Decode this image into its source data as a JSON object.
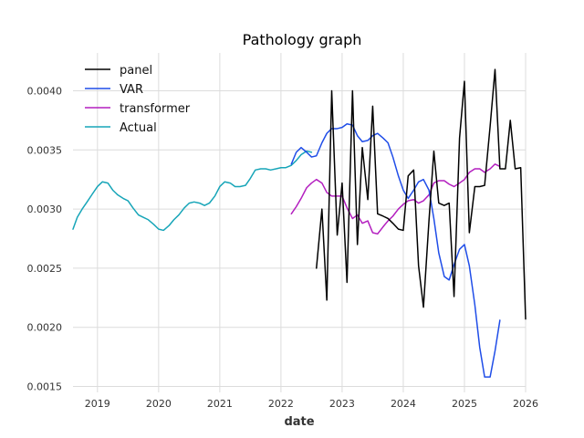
{
  "chart_data": {
    "type": "line",
    "title": "Pathology graph",
    "xlabel": "date",
    "ylabel": "",
    "xlim": [
      2018.6,
      2026.0
    ],
    "ylim": [
      0.00145,
      0.00432
    ],
    "x_ticks": [
      2019,
      2020,
      2021,
      2022,
      2023,
      2024,
      2025,
      2026
    ],
    "x_tick_labels": [
      "2019",
      "2020",
      "2021",
      "2022",
      "2023",
      "2024",
      "2025",
      "2026"
    ],
    "y_ticks": [
      0.0015,
      0.002,
      0.0025,
      0.003,
      0.0035,
      0.004
    ],
    "y_tick_labels": [
      "0.0015",
      "0.0020",
      "0.0025",
      "0.0030",
      "0.0035",
      "0.0040"
    ],
    "grid": true,
    "legend_position": "top-left",
    "series": [
      {
        "name": "panel",
        "color": "#000000",
        "points": [
          [
            2022.58,
            0.0025
          ],
          [
            2022.67,
            0.003
          ],
          [
            2022.75,
            0.00223
          ],
          [
            2022.83,
            0.004
          ],
          [
            2022.92,
            0.00278
          ],
          [
            2023.0,
            0.00322
          ],
          [
            2023.08,
            0.00238
          ],
          [
            2023.17,
            0.004
          ],
          [
            2023.25,
            0.0027
          ],
          [
            2023.33,
            0.00352
          ],
          [
            2023.42,
            0.00308
          ],
          [
            2023.5,
            0.00387
          ],
          [
            2023.58,
            0.00296
          ],
          [
            2023.67,
            0.00294
          ],
          [
            2023.75,
            0.00292
          ],
          [
            2023.83,
            0.00288
          ],
          [
            2023.92,
            0.00283
          ],
          [
            2024.0,
            0.00282
          ],
          [
            2024.08,
            0.00328
          ],
          [
            2024.17,
            0.00333
          ],
          [
            2024.25,
            0.00252
          ],
          [
            2024.33,
            0.00217
          ],
          [
            2024.42,
            0.0029
          ],
          [
            2024.5,
            0.00349
          ],
          [
            2024.58,
            0.00305
          ],
          [
            2024.67,
            0.00303
          ],
          [
            2024.75,
            0.00305
          ],
          [
            2024.83,
            0.00226
          ],
          [
            2024.92,
            0.0036
          ],
          [
            2025.0,
            0.00408
          ],
          [
            2025.08,
            0.0028
          ],
          [
            2025.17,
            0.00319
          ],
          [
            2025.25,
            0.00319
          ],
          [
            2025.33,
            0.0032
          ],
          [
            2025.42,
            0.0037
          ],
          [
            2025.5,
            0.00418
          ],
          [
            2025.58,
            0.00334
          ],
          [
            2025.67,
            0.00334
          ],
          [
            2025.75,
            0.00375
          ],
          [
            2025.83,
            0.00334
          ],
          [
            2025.92,
            0.00335
          ],
          [
            2026.0,
            0.00207
          ]
        ]
      },
      {
        "name": "VAR",
        "color": "#1f4de8",
        "points": [
          [
            2022.17,
            0.00338
          ],
          [
            2022.25,
            0.00348
          ],
          [
            2022.33,
            0.00352
          ],
          [
            2022.42,
            0.00348
          ],
          [
            2022.5,
            0.00344
          ],
          [
            2022.58,
            0.00345
          ],
          [
            2022.67,
            0.00356
          ],
          [
            2022.75,
            0.00364
          ],
          [
            2022.83,
            0.00368
          ],
          [
            2022.92,
            0.00368
          ],
          [
            2023.0,
            0.00369
          ],
          [
            2023.08,
            0.00372
          ],
          [
            2023.17,
            0.00371
          ],
          [
            2023.25,
            0.00362
          ],
          [
            2023.33,
            0.00357
          ],
          [
            2023.42,
            0.00358
          ],
          [
            2023.5,
            0.00362
          ],
          [
            2023.58,
            0.00364
          ],
          [
            2023.67,
            0.0036
          ],
          [
            2023.75,
            0.00356
          ],
          [
            2023.83,
            0.00344
          ],
          [
            2023.92,
            0.00328
          ],
          [
            2024.0,
            0.00316
          ],
          [
            2024.08,
            0.00309
          ],
          [
            2024.17,
            0.00316
          ],
          [
            2024.25,
            0.00323
          ],
          [
            2024.33,
            0.00325
          ],
          [
            2024.42,
            0.00316
          ],
          [
            2024.5,
            0.00292
          ],
          [
            2024.58,
            0.00263
          ],
          [
            2024.67,
            0.00243
          ],
          [
            2024.75,
            0.0024
          ],
          [
            2024.83,
            0.00253
          ],
          [
            2024.92,
            0.00266
          ],
          [
            2025.0,
            0.0027
          ],
          [
            2025.08,
            0.00252
          ],
          [
            2025.17,
            0.00219
          ],
          [
            2025.25,
            0.00183
          ],
          [
            2025.33,
            0.00158
          ],
          [
            2025.42,
            0.00158
          ],
          [
            2025.5,
            0.0018
          ],
          [
            2025.58,
            0.00206
          ]
        ]
      },
      {
        "name": "transformer",
        "color": "#b31ebf",
        "points": [
          [
            2022.17,
            0.00296
          ],
          [
            2022.25,
            0.00302
          ],
          [
            2022.33,
            0.00309
          ],
          [
            2022.42,
            0.00318
          ],
          [
            2022.5,
            0.00322
          ],
          [
            2022.58,
            0.00325
          ],
          [
            2022.67,
            0.00322
          ],
          [
            2022.75,
            0.00314
          ],
          [
            2022.83,
            0.00311
          ],
          [
            2022.92,
            0.00311
          ],
          [
            2023.0,
            0.00311
          ],
          [
            2023.08,
            0.00301
          ],
          [
            2023.17,
            0.00292
          ],
          [
            2023.25,
            0.00295
          ],
          [
            2023.33,
            0.00288
          ],
          [
            2023.42,
            0.0029
          ],
          [
            2023.5,
            0.0028
          ],
          [
            2023.58,
            0.00279
          ],
          [
            2023.67,
            0.00285
          ],
          [
            2023.75,
            0.0029
          ],
          [
            2023.83,
            0.00294
          ],
          [
            2023.92,
            0.003
          ],
          [
            2024.0,
            0.00304
          ],
          [
            2024.08,
            0.00307
          ],
          [
            2024.17,
            0.00308
          ],
          [
            2024.25,
            0.00305
          ],
          [
            2024.33,
            0.00307
          ],
          [
            2024.42,
            0.00312
          ],
          [
            2024.5,
            0.00322
          ],
          [
            2024.58,
            0.00324
          ],
          [
            2024.67,
            0.00324
          ],
          [
            2024.75,
            0.00321
          ],
          [
            2024.83,
            0.00319
          ],
          [
            2024.92,
            0.00322
          ],
          [
            2025.0,
            0.00325
          ],
          [
            2025.08,
            0.00331
          ],
          [
            2025.17,
            0.00334
          ],
          [
            2025.25,
            0.00334
          ],
          [
            2025.33,
            0.00331
          ],
          [
            2025.42,
            0.00334
          ],
          [
            2025.5,
            0.00338
          ],
          [
            2025.58,
            0.00336
          ]
        ]
      },
      {
        "name": "Actual",
        "color": "#17a5b8",
        "points": [
          [
            2018.6,
            0.00283
          ],
          [
            2018.67,
            0.00293
          ],
          [
            2018.75,
            0.003
          ],
          [
            2018.83,
            0.00306
          ],
          [
            2018.92,
            0.00313
          ],
          [
            2019.0,
            0.00319
          ],
          [
            2019.08,
            0.00323
          ],
          [
            2019.17,
            0.00322
          ],
          [
            2019.25,
            0.00316
          ],
          [
            2019.33,
            0.00312
          ],
          [
            2019.42,
            0.00309
          ],
          [
            2019.5,
            0.00307
          ],
          [
            2019.58,
            0.00301
          ],
          [
            2019.67,
            0.00295
          ],
          [
            2019.75,
            0.00293
          ],
          [
            2019.83,
            0.00291
          ],
          [
            2019.92,
            0.00287
          ],
          [
            2020.0,
            0.00283
          ],
          [
            2020.08,
            0.00282
          ],
          [
            2020.17,
            0.00286
          ],
          [
            2020.25,
            0.00291
          ],
          [
            2020.33,
            0.00295
          ],
          [
            2020.42,
            0.00301
          ],
          [
            2020.5,
            0.00305
          ],
          [
            2020.58,
            0.00306
          ],
          [
            2020.67,
            0.00305
          ],
          [
            2020.75,
            0.00303
          ],
          [
            2020.83,
            0.00305
          ],
          [
            2020.92,
            0.00311
          ],
          [
            2021.0,
            0.00319
          ],
          [
            2021.08,
            0.00323
          ],
          [
            2021.17,
            0.00322
          ],
          [
            2021.25,
            0.00319
          ],
          [
            2021.33,
            0.00319
          ],
          [
            2021.42,
            0.0032
          ],
          [
            2021.5,
            0.00326
          ],
          [
            2021.58,
            0.00333
          ],
          [
            2021.67,
            0.00334
          ],
          [
            2021.75,
            0.00334
          ],
          [
            2021.83,
            0.00333
          ],
          [
            2021.92,
            0.00334
          ],
          [
            2022.0,
            0.00335
          ],
          [
            2022.08,
            0.00335
          ],
          [
            2022.17,
            0.00337
          ],
          [
            2022.25,
            0.00341
          ],
          [
            2022.33,
            0.00346
          ],
          [
            2022.42,
            0.00349
          ],
          [
            2022.5,
            0.00348
          ]
        ]
      }
    ]
  }
}
